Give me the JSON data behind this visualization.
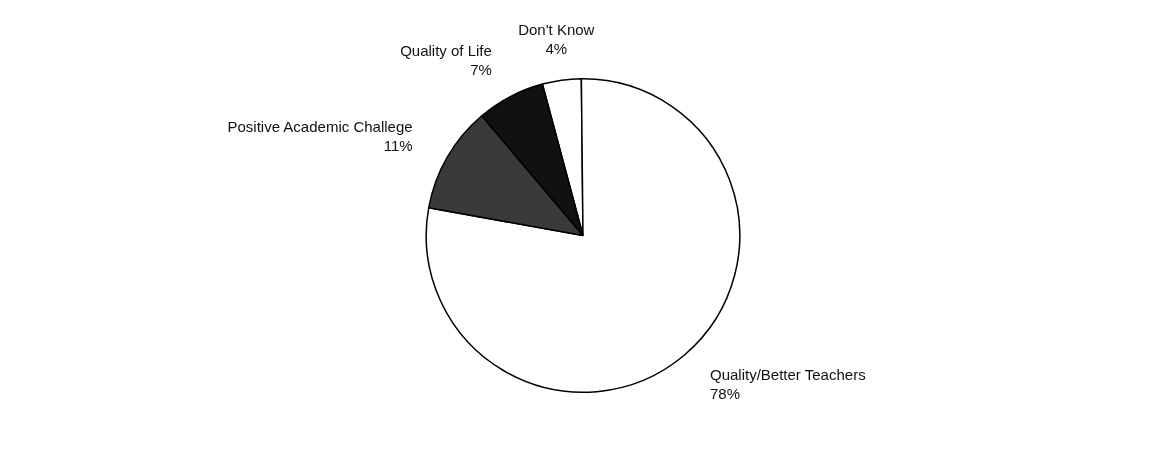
{
  "chart_data": {
    "type": "pie",
    "categories": [
      "Don't Know",
      "Quality/Better Teachers",
      "Positive Academic Challege",
      "Quality of Life"
    ],
    "values": [
      4,
      78,
      11,
      7
    ],
    "value_labels": [
      "4%",
      "78%",
      "11%",
      "7%"
    ],
    "colors": [
      "#ffffff",
      "#ffffff",
      "#3a3a3a",
      "#111111"
    ],
    "legend": false
  }
}
